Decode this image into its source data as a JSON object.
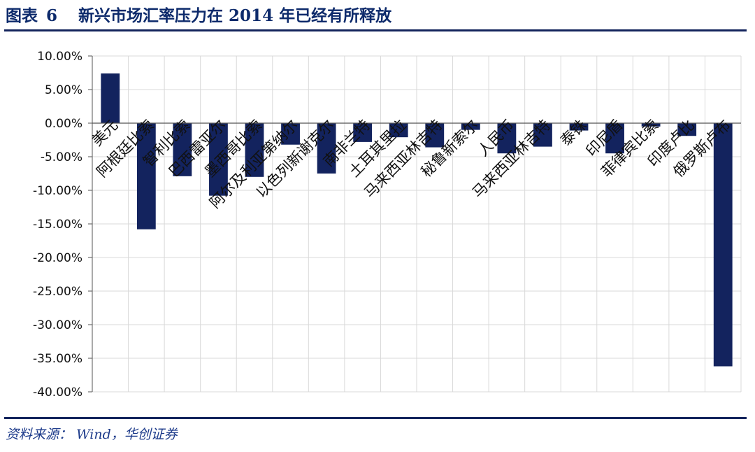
{
  "figure": {
    "label": "图表",
    "number": "6",
    "title": "新兴市场汇率压力在 2014 年已经有所释放"
  },
  "source": {
    "label": "资料来源：",
    "text": "Wind，华创证券"
  },
  "chart_data": {
    "type": "bar",
    "title": "",
    "xlabel": "",
    "ylabel": "",
    "ylim": [
      -40,
      10
    ],
    "y_ticks": [
      10,
      5,
      0,
      -5,
      -10,
      -15,
      -20,
      -25,
      -30,
      -35,
      -40
    ],
    "y_tick_labels": [
      "10.00%",
      "5.00%",
      "0.00%",
      "-5.00%",
      "-10.00%",
      "-15.00%",
      "-20.00%",
      "-25.00%",
      "-30.00%",
      "-35.00%",
      "-40.00%"
    ],
    "grid": true,
    "legend": "none",
    "bar_color": "#13235e",
    "categories": [
      "美元",
      "阿根廷比索",
      "智利比索",
      "巴西雷亚尔",
      "墨西哥比索",
      "阿尔及利亚第纳尔",
      "以色列新谢克尔",
      "南非兰特",
      "土耳其里拉",
      "马来西亚林吉特",
      "秘鲁新索尔",
      "人民币",
      "马来西亚林吉特",
      "泰铢",
      "印尼盾",
      "菲律宾比索",
      "印度卢比",
      "俄罗斯卢布"
    ],
    "values": [
      7.4,
      -15.8,
      -7.9,
      -10.8,
      -8.0,
      -3.2,
      -7.5,
      -2.8,
      -2.1,
      -3.6,
      -1.0,
      -4.5,
      -3.5,
      -1.1,
      -4.5,
      -0.5,
      -1.9,
      -36.2
    ]
  }
}
